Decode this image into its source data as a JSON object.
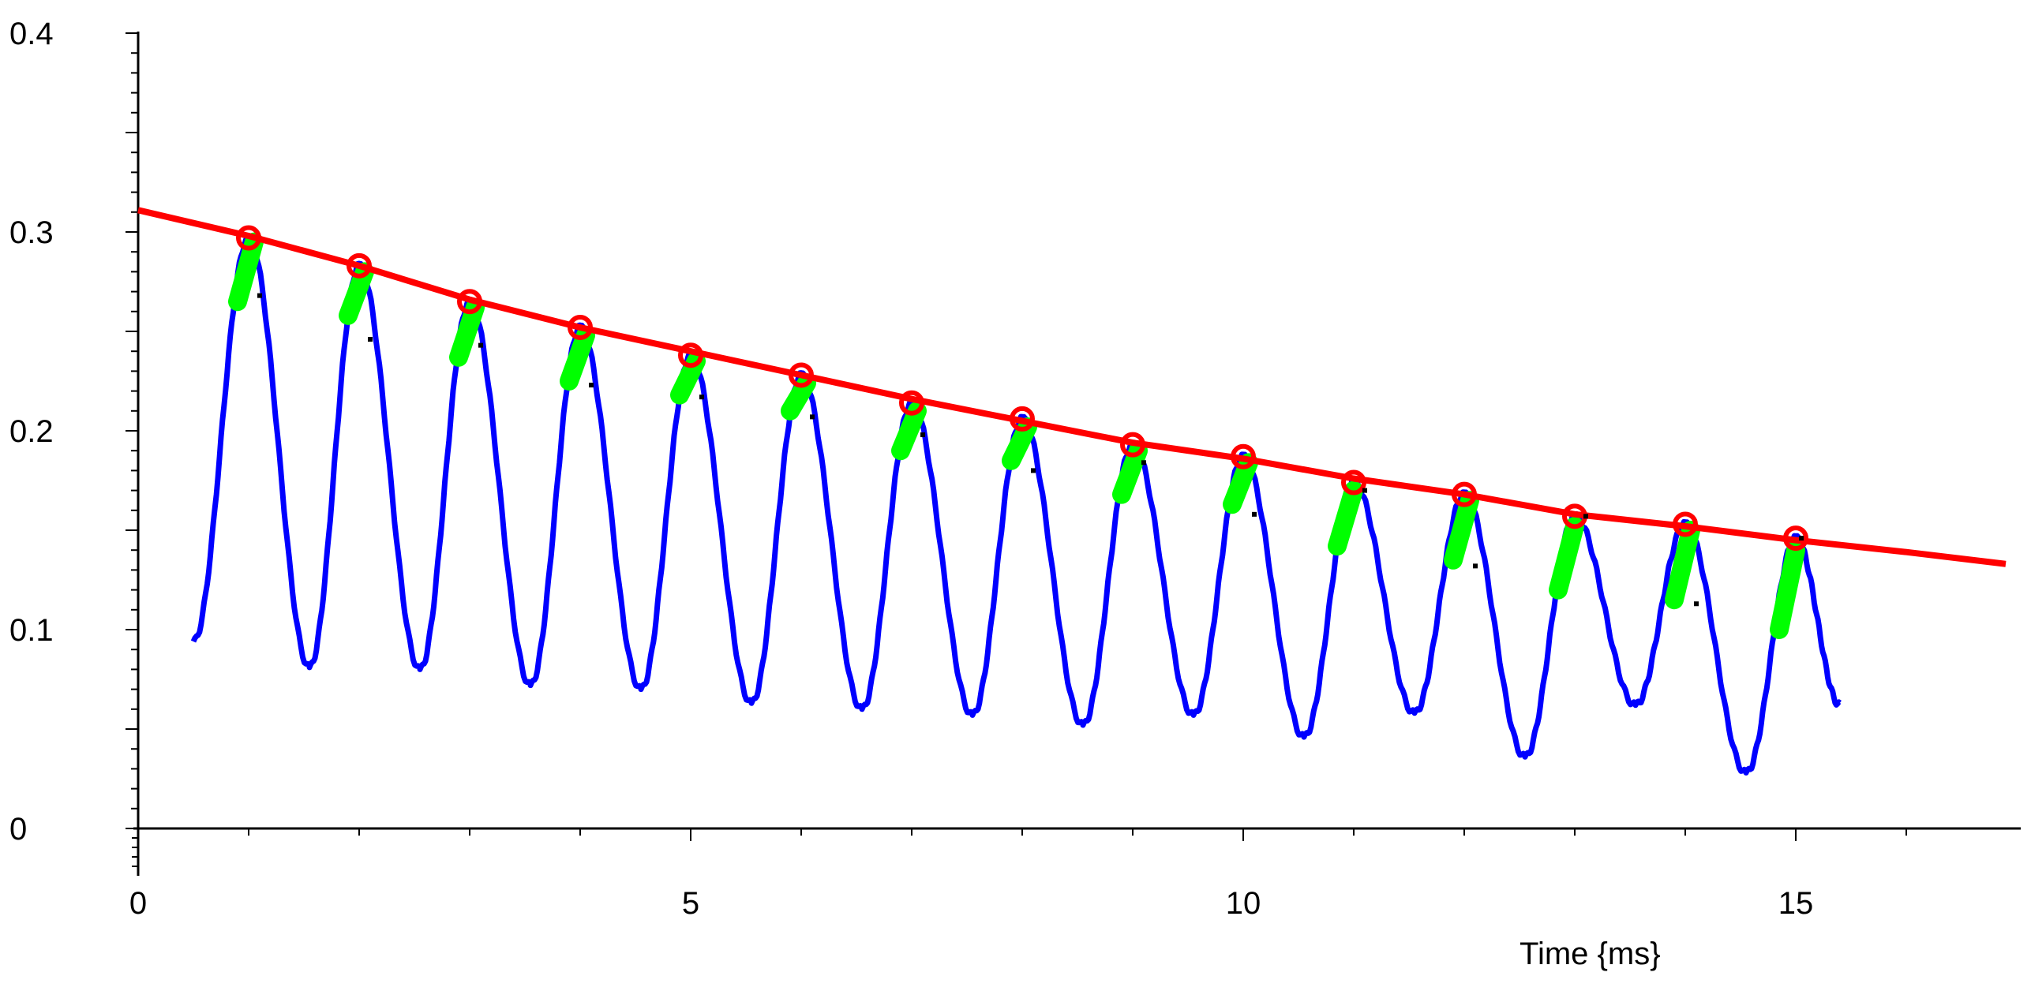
{
  "chart_data": {
    "type": "line",
    "title": "",
    "xlabel": "Time {ms}",
    "ylabel": "",
    "xlim": [
      0,
      17
    ],
    "ylim": [
      0,
      0.4
    ],
    "x_ticks": [
      0,
      5,
      10,
      15
    ],
    "x_tick_labels": [
      "0",
      "5",
      "10",
      "15"
    ],
    "y_ticks": [
      0,
      0.1,
      0.2,
      0.3,
      0.4
    ],
    "y_tick_labels": [
      "0",
      "0.1",
      "0.2",
      "0.3",
      "0.4"
    ],
    "grid": false,
    "legend": "none",
    "colors": {
      "signal": "#0000ff",
      "envelope": "#ff0000",
      "peak_marker": "#ff0000",
      "peak_segment": "#00ff00",
      "minor_point": "#000000",
      "axis": "#000000"
    },
    "series": [
      {
        "style": "oscillating-signal",
        "period_ms": 1.0,
        "start_x": 0.5,
        "end_x": 15.4,
        "peaks": [
          {
            "x": 1.0,
            "y": 0.297
          },
          {
            "x": 2.0,
            "y": 0.283
          },
          {
            "x": 3.0,
            "y": 0.265
          },
          {
            "x": 4.0,
            "y": 0.252
          },
          {
            "x": 5.0,
            "y": 0.238
          },
          {
            "x": 6.0,
            "y": 0.228
          },
          {
            "x": 7.0,
            "y": 0.214
          },
          {
            "x": 8.0,
            "y": 0.206
          },
          {
            "x": 9.0,
            "y": 0.193
          },
          {
            "x": 10.0,
            "y": 0.187
          },
          {
            "x": 11.0,
            "y": 0.174
          },
          {
            "x": 12.0,
            "y": 0.168
          },
          {
            "x": 13.0,
            "y": 0.157
          },
          {
            "x": 14.0,
            "y": 0.153
          },
          {
            "x": 15.0,
            "y": 0.146
          }
        ],
        "troughs": [
          {
            "x": 0.5,
            "y": 0.094
          },
          {
            "x": 1.55,
            "y": 0.081
          },
          {
            "x": 2.55,
            "y": 0.08
          },
          {
            "x": 3.55,
            "y": 0.072
          },
          {
            "x": 4.55,
            "y": 0.07
          },
          {
            "x": 5.55,
            "y": 0.063
          },
          {
            "x": 6.55,
            "y": 0.06
          },
          {
            "x": 7.55,
            "y": 0.057
          },
          {
            "x": 8.55,
            "y": 0.052
          },
          {
            "x": 9.55,
            "y": 0.057
          },
          {
            "x": 10.55,
            "y": 0.046
          },
          {
            "x": 11.55,
            "y": 0.058
          },
          {
            "x": 12.55,
            "y": 0.036
          },
          {
            "x": 13.55,
            "y": 0.062
          },
          {
            "x": 14.55,
            "y": 0.028
          },
          {
            "x": 15.4,
            "y": 0.062
          }
        ]
      },
      {
        "style": "fit-line",
        "x": [
          0,
          1,
          2,
          3,
          4,
          5,
          6,
          7,
          8,
          9,
          10,
          11,
          12,
          13,
          14,
          15,
          16,
          16.9
        ],
        "y": [
          0.311,
          0.298,
          0.283,
          0.266,
          0.252,
          0.24,
          0.228,
          0.216,
          0.205,
          0.194,
          0.186,
          0.176,
          0.168,
          0.158,
          0.152,
          0.145,
          0.139,
          0.133
        ]
      }
    ],
    "peak_segments": [
      {
        "x0": 0.9,
        "y0": 0.265,
        "x1": 1.05,
        "y1": 0.295
      },
      {
        "x0": 1.9,
        "y0": 0.258,
        "x1": 2.05,
        "y1": 0.28
      },
      {
        "x0": 2.9,
        "y0": 0.237,
        "x1": 3.05,
        "y1": 0.262
      },
      {
        "x0": 3.9,
        "y0": 0.225,
        "x1": 4.05,
        "y1": 0.248
      },
      {
        "x0": 4.9,
        "y0": 0.218,
        "x1": 5.05,
        "y1": 0.235
      },
      {
        "x0": 5.9,
        "y0": 0.21,
        "x1": 6.05,
        "y1": 0.224
      },
      {
        "x0": 6.9,
        "y0": 0.19,
        "x1": 7.05,
        "y1": 0.21
      },
      {
        "x0": 7.9,
        "y0": 0.185,
        "x1": 8.05,
        "y1": 0.202
      },
      {
        "x0": 8.9,
        "y0": 0.168,
        "x1": 9.05,
        "y1": 0.19
      },
      {
        "x0": 9.9,
        "y0": 0.163,
        "x1": 10.05,
        "y1": 0.184
      },
      {
        "x0": 10.85,
        "y0": 0.142,
        "x1": 11.0,
        "y1": 0.17
      },
      {
        "x0": 11.9,
        "y0": 0.135,
        "x1": 12.05,
        "y1": 0.165
      },
      {
        "x0": 12.85,
        "y0": 0.12,
        "x1": 13.0,
        "y1": 0.152
      },
      {
        "x0": 13.9,
        "y0": 0.115,
        "x1": 14.05,
        "y1": 0.15
      },
      {
        "x0": 14.85,
        "y0": 0.1,
        "x1": 15.0,
        "y1": 0.14
      }
    ],
    "minor_points": [
      {
        "x": 1.1,
        "y": 0.268
      },
      {
        "x": 2.1,
        "y": 0.246
      },
      {
        "x": 3.1,
        "y": 0.243
      },
      {
        "x": 4.1,
        "y": 0.223
      },
      {
        "x": 5.1,
        "y": 0.217
      },
      {
        "x": 6.1,
        "y": 0.207
      },
      {
        "x": 7.1,
        "y": 0.198
      },
      {
        "x": 8.1,
        "y": 0.18
      },
      {
        "x": 9.1,
        "y": 0.184
      },
      {
        "x": 10.1,
        "y": 0.158
      },
      {
        "x": 11.1,
        "y": 0.17
      },
      {
        "x": 12.1,
        "y": 0.132
      },
      {
        "x": 13.1,
        "y": 0.157
      },
      {
        "x": 14.1,
        "y": 0.113
      },
      {
        "x": 15.05,
        "y": 0.146
      }
    ]
  }
}
